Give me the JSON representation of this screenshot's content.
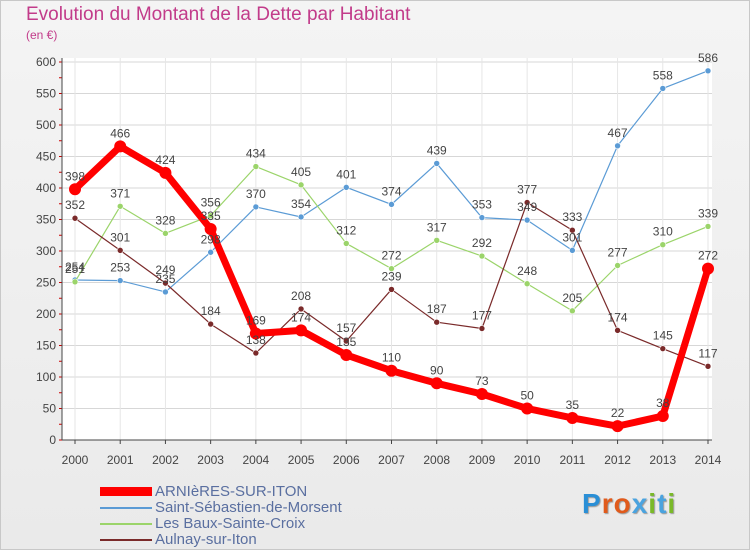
{
  "title": "Evolution du Montant de la Dette par Habitant",
  "unit": "(en €)",
  "logo": {
    "text": "Proxiti",
    "colors": [
      "#2a8fd6",
      "#e05a1b",
      "#e05a1b",
      "#4aa3df",
      "#7ab929",
      "#4aa3df",
      "#7ab929"
    ]
  },
  "chart_data": {
    "type": "line",
    "x": [
      2000,
      2001,
      2002,
      2003,
      2004,
      2005,
      2006,
      2007,
      2008,
      2009,
      2010,
      2011,
      2012,
      2013,
      2014
    ],
    "ylim": [
      0,
      600
    ],
    "yticks": [
      0,
      50,
      100,
      150,
      200,
      250,
      300,
      350,
      400,
      450,
      500,
      550,
      600
    ],
    "grid": true,
    "legend_position": "bottom-left",
    "series": [
      {
        "name": "Saint-Sébastien-de-Morsent",
        "color": "#5b9bd5",
        "width": 1.2,
        "values": [
          254,
          253,
          235,
          298,
          370,
          354,
          401,
          374,
          439,
          353,
          349,
          301,
          467,
          558,
          586
        ]
      },
      {
        "name": "Les Baux-Sainte-Croix",
        "color": "#9bd46a",
        "width": 1.2,
        "values": [
          251,
          371,
          328,
          356,
          434,
          405,
          312,
          272,
          317,
          292,
          248,
          205,
          277,
          310,
          339
        ]
      },
      {
        "name": "Aulnay-sur-Iton",
        "color": "#7a2a2a",
        "width": 1.2,
        "values": [
          352,
          301,
          249,
          184,
          138,
          208,
          157,
          239,
          187,
          177,
          377,
          333,
          174,
          145,
          117
        ]
      },
      {
        "name": "ARNIèRES-SUR-ITON",
        "color": "#ff0000",
        "width": 7,
        "values": [
          398,
          466,
          424,
          335,
          169,
          174,
          135,
          110,
          90,
          73,
          50,
          35,
          22,
          38,
          272
        ]
      }
    ]
  },
  "legend_order": [
    3,
    0,
    1,
    2
  ]
}
